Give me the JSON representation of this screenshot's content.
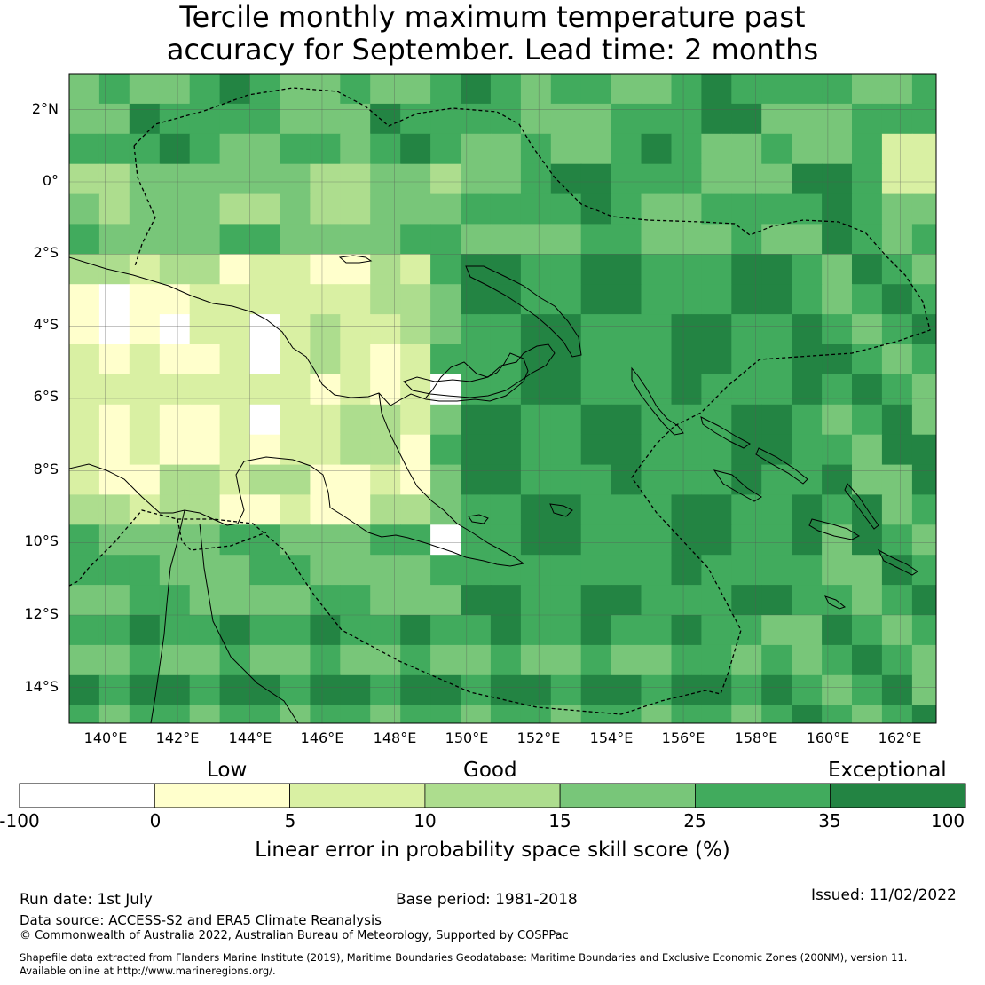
{
  "title": {
    "line1": "Tercile monthly maximum temperature past",
    "line2": "accuracy for September. Lead time: 2 months"
  },
  "map": {
    "lat_labels": [
      "2°N",
      "0°",
      "2°S",
      "4°S",
      "6°S",
      "8°S",
      "10°S",
      "12°S",
      "14°S"
    ],
    "lon_labels": [
      "140°E",
      "142°E",
      "144°E",
      "146°E",
      "148°E",
      "150°E",
      "152°E",
      "154°E",
      "156°E",
      "158°E",
      "160°E",
      "162°E"
    ],
    "extent": {
      "lon_min": 139.0,
      "lon_max": 163.0,
      "lat_min": -15.0,
      "lat_max": 3.0
    },
    "grid": "on",
    "boundary_style": "dashed",
    "coastline_color": "#000000"
  },
  "legend": {
    "categories": [
      "Low",
      "Good",
      "Exceptional"
    ],
    "bins": [
      {
        "from": -100,
        "to": 0,
        "color": "#ffffff"
      },
      {
        "from": 0,
        "to": 5,
        "color": "#ffffcc"
      },
      {
        "from": 5,
        "to": 10,
        "color": "#d9f0a3"
      },
      {
        "from": 10,
        "to": 15,
        "color": "#addd8e"
      },
      {
        "from": 15,
        "to": 25,
        "color": "#78c679"
      },
      {
        "from": 25,
        "to": 35,
        "color": "#41ab5d"
      },
      {
        "from": 35,
        "to": 100,
        "color": "#238443"
      }
    ],
    "tick_labels": [
      "-100",
      "0",
      "5",
      "10",
      "15",
      "25",
      "35",
      "100"
    ],
    "title": "Linear error in probability space skill score (%)"
  },
  "footer": {
    "run_date": "Run date: 1st July",
    "base_period": "Base period: 1981-2018",
    "issued": "Issued: 11/02/2022",
    "data_source": "Data source: ACCESS-S2 and ERA5 Climate Reanalysis",
    "copyright": "© Commonwealth of Australia 2022, Australian Bureau of Meteorology, Supported by COSPPac",
    "shapefile_line1": "Shapefile data extracted from Flanders Marine Institute (2019), Maritime Boundaries Geodatabase: Maritime Boundaries and Exclusive Economic Zones (200NM), version 11.",
    "shapefile_line2": "Available online at http://www.marineregions.org/."
  }
}
